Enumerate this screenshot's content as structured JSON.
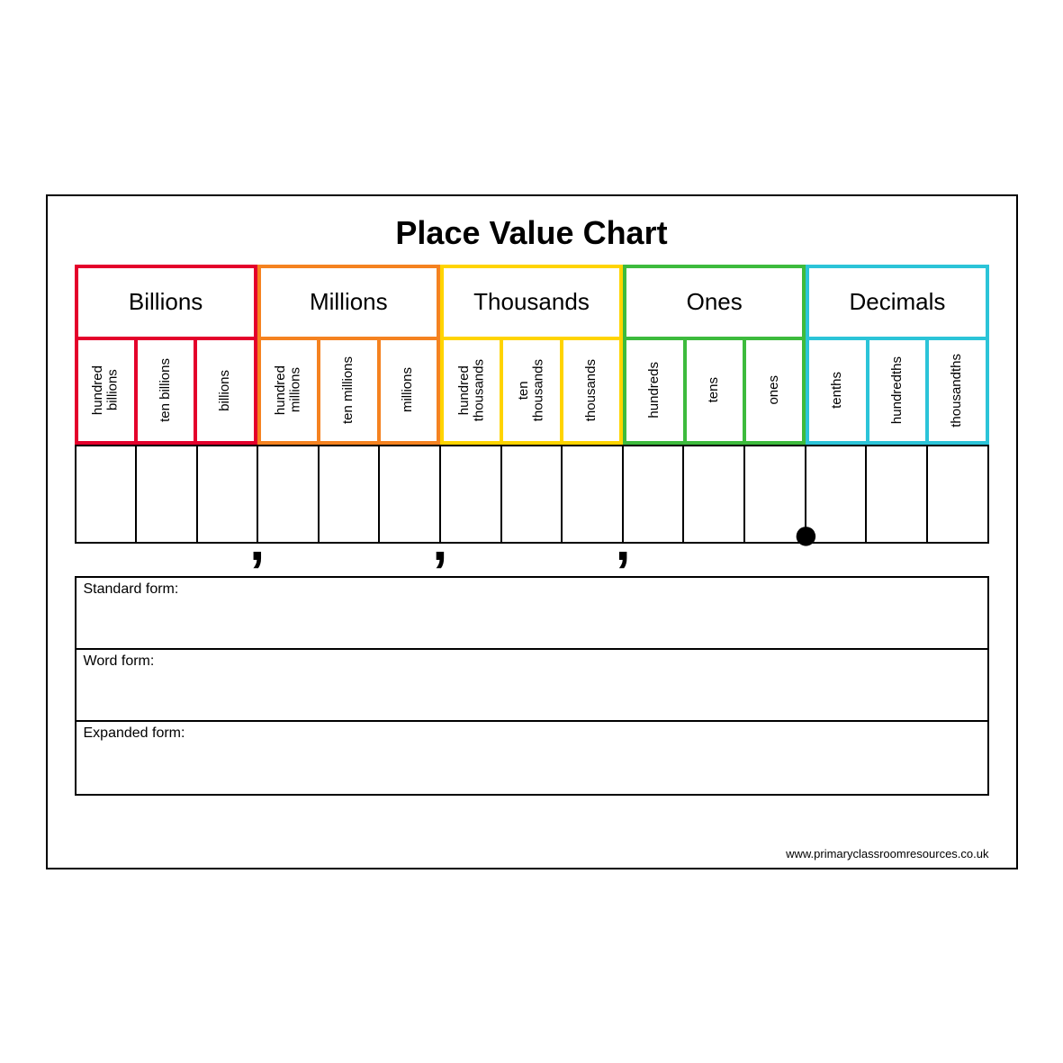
{
  "title": "Place Value Chart",
  "footer": "www.primaryclassroomresources.co.uk",
  "groups": [
    {
      "label": "Billions",
      "color": "#e4002b",
      "subs": [
        "hundred\nbillions",
        "ten billions",
        "billions"
      ]
    },
    {
      "label": "Millions",
      "color": "#f58220",
      "subs": [
        "hundred\nmillions",
        "ten millions",
        "millions"
      ]
    },
    {
      "label": "Thousands",
      "color": "#ffd400",
      "subs": [
        "hundred\nthousands",
        "ten\nthousands",
        "thousands"
      ]
    },
    {
      "label": "Ones",
      "color": "#3dbb3d",
      "subs": [
        "hundreds",
        "tens",
        "ones"
      ]
    },
    {
      "label": "Decimals",
      "color": "#2bc4d8",
      "subs": [
        "tenths",
        "hundredths",
        "thousandths"
      ]
    }
  ],
  "separators": [
    {
      "after_col": 3,
      "glyph": ",",
      "kind": "comma"
    },
    {
      "after_col": 6,
      "glyph": ",",
      "kind": "comma"
    },
    {
      "after_col": 9,
      "glyph": ",",
      "kind": "comma"
    },
    {
      "after_col": 12,
      "glyph": "●",
      "kind": "dot"
    }
  ],
  "forms": [
    {
      "label": "Standard form:"
    },
    {
      "label": "Word form:"
    },
    {
      "label": "Expanded form:"
    }
  ],
  "styling": {
    "page_border_color": "#000000",
    "background_color": "#ffffff",
    "title_fontsize": 36,
    "group_header_fontsize": 26,
    "sub_label_fontsize": 15,
    "form_label_fontsize": 16,
    "group_border_width": 4,
    "entry_border_width": 2,
    "entry_border_color": "#000000",
    "font_family": "Comic Sans MS"
  }
}
